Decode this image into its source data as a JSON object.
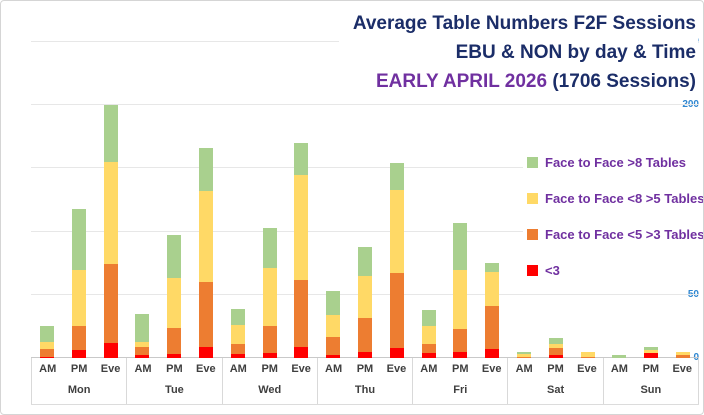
{
  "title": {
    "line1": "Average Table Numbers F2F Sessions",
    "line2": "EBU & NON  by day & Time",
    "line3_highlight": "EARLY APRIL 2026",
    "line3_rest": " (1706 Sessions)"
  },
  "colors": {
    "navy": "#1b2d68",
    "purple": "#7030a0",
    "tick_blue": "#2e86d0",
    "gridline": "#e7e7e7",
    "green": "#a9d08e",
    "yellow": "#ffd966",
    "orange": "#ed7d31",
    "red": "#ff0000"
  },
  "legend": [
    {
      "label": "Face to Face >8 Tables",
      "color": "#a9d08e"
    },
    {
      "label": "Face to Face <8 >5 Tables",
      "color": "#ffd966"
    },
    {
      "label": "Face to Face <5 >3 Tables",
      "color": "#ed7d31"
    },
    {
      "label": "<3",
      "color": "#ff0000"
    }
  ],
  "chart_data": {
    "type": "bar",
    "stacked": true,
    "title": "Average Table Numbers F2F Sessions EBU & NON by day & Time EARLY APRIL 2026 (1706 Sessions)",
    "days": [
      "Mon",
      "Tue",
      "Wed",
      "Thu",
      "Fri",
      "Sat",
      "Sun"
    ],
    "times": [
      "AM",
      "PM",
      "Eve"
    ],
    "value_order": "day-major: Mon AM, Mon PM, Mon Eve, Tue AM, ... Sun Eve",
    "y_ticks": [
      0,
      50,
      100,
      150,
      200,
      250
    ],
    "ylim": [
      0,
      250
    ],
    "grid": true,
    "legend_position": "right",
    "series": [
      {
        "name": "<3",
        "color": "#ff0000",
        "values": [
          1,
          6,
          12,
          2,
          3,
          9,
          3,
          4,
          9,
          2,
          5,
          8,
          4,
          5,
          7,
          0,
          2,
          0,
          0,
          4,
          0
        ]
      },
      {
        "name": "Face to Face <5 >3 Tables",
        "color": "#ed7d31",
        "values": [
          6,
          19,
          62,
          7,
          21,
          51,
          8,
          21,
          53,
          15,
          27,
          59,
          7,
          18,
          34,
          1,
          6,
          1,
          0,
          0,
          2
        ]
      },
      {
        "name": "Face to Face <8 >5 Tables",
        "color": "#ffd966",
        "values": [
          6,
          45,
          81,
          4,
          39,
          72,
          15,
          46,
          83,
          17,
          33,
          66,
          14,
          47,
          27,
          2,
          3,
          4,
          0,
          2,
          3
        ]
      },
      {
        "name": "Face to Face >8 Tables",
        "color": "#a9d08e",
        "values": [
          12,
          48,
          45,
          22,
          34,
          34,
          13,
          32,
          25,
          19,
          23,
          21,
          13,
          37,
          7,
          2,
          5,
          0,
          2,
          3,
          0
        ]
      }
    ],
    "totals_per_bar": [
      25,
      118,
      200,
      35,
      97,
      166,
      39,
      103,
      170,
      53,
      88,
      154,
      38,
      107,
      75,
      5,
      16,
      5,
      2,
      9,
      5
    ]
  }
}
